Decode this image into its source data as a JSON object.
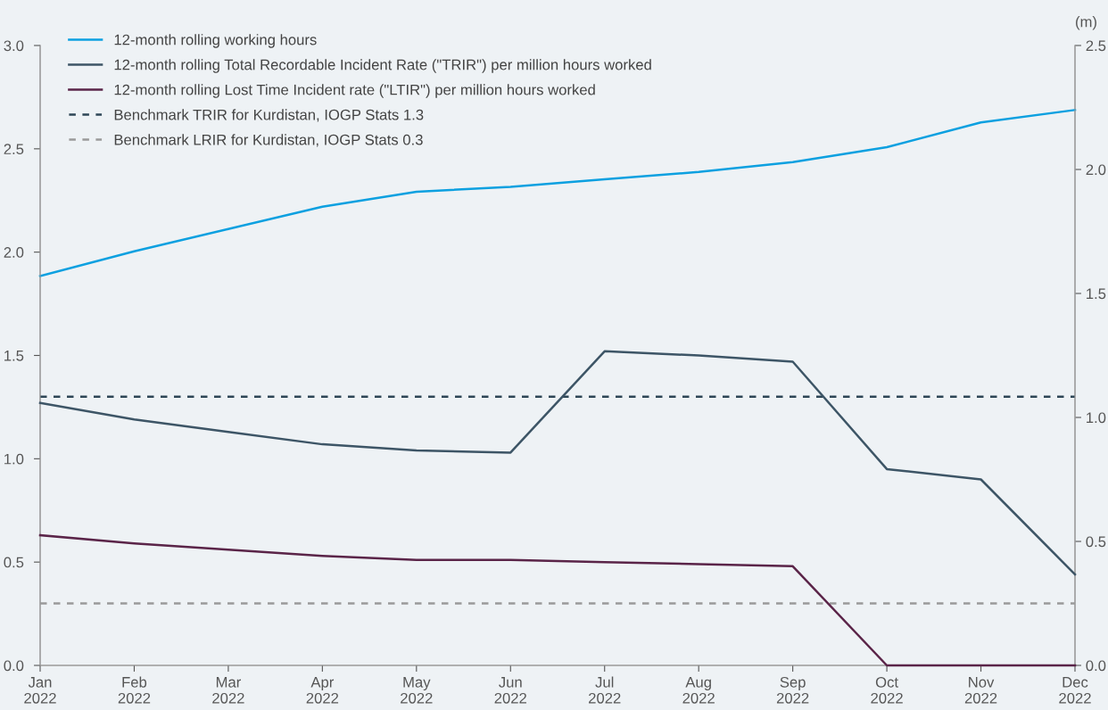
{
  "chart_data": {
    "type": "line",
    "categories": [
      "Jan\n2022",
      "Feb\n2022",
      "Mar\n2022",
      "Apr\n2022",
      "May\n2022",
      "Jun\n2022",
      "Jul\n2022",
      "Aug\n2022",
      "Sep\n2022",
      "Oct\n2022",
      "Nov\n2022",
      "Dec\n2022"
    ],
    "series": [
      {
        "name": "12-month rolling working hours",
        "color": "#0ca0e0",
        "axis": "y2",
        "values": [
          1.57,
          1.67,
          1.76,
          1.85,
          1.91,
          1.93,
          1.96,
          1.99,
          2.03,
          2.09,
          2.19,
          2.24
        ]
      },
      {
        "name": "12-month rolling Total Recordable Incident Rate (\"TRIR\") per million hours worked",
        "color": "#3d5566",
        "values": [
          1.27,
          1.19,
          1.13,
          1.07,
          1.04,
          1.03,
          1.52,
          1.5,
          1.47,
          0.95,
          0.9,
          0.44
        ]
      },
      {
        "name": "12-month rolling Lost Time Incident rate (\"LTIR\") per million hours worked",
        "color": "#5a2448",
        "values": [
          0.63,
          0.59,
          0.56,
          0.53,
          0.51,
          0.51,
          0.5,
          0.49,
          0.48,
          0,
          0,
          0
        ]
      }
    ],
    "ref_lines": [
      {
        "axis": "y",
        "value": 1.3,
        "label": "Benchmark TRIR for Kurdistan, IOGP Stats 1.3",
        "color": "#2e4656",
        "line_style": "dashed"
      },
      {
        "axis": "y",
        "value": 0.3,
        "label": "Benchmark LRIR for Kurdistan, IOGP Stats 0.3",
        "color": "#9a9a9a",
        "line_style": "dashed"
      }
    ],
    "ylim": [
      0,
      3.0
    ],
    "yticks": [
      {
        "value": 0,
        "label": "0.0"
      },
      {
        "value": 0.5,
        "label": "0.5"
      },
      {
        "value": 1.0,
        "label": "1.0"
      },
      {
        "value": 1.5,
        "label": "1.5"
      },
      {
        "value": 2.0,
        "label": "2.0"
      },
      {
        "value": 2.5,
        "label": "2.5"
      },
      {
        "value": 3.0,
        "label": "3.0"
      }
    ],
    "y2lim": [
      0,
      2.5
    ],
    "y2ticks": [
      {
        "value": 0,
        "label": "0.0"
      },
      {
        "value": 0.5,
        "label": "0.5"
      },
      {
        "value": 1.0,
        "label": "1.0"
      },
      {
        "value": 1.5,
        "label": "1.5"
      },
      {
        "value": 2.0,
        "label": "2.0"
      },
      {
        "value": 2.5,
        "label": "2.5"
      }
    ],
    "y2label": "(m)",
    "legend": "top left",
    "grid": false,
    "marker": "none",
    "line_style": "solid"
  }
}
